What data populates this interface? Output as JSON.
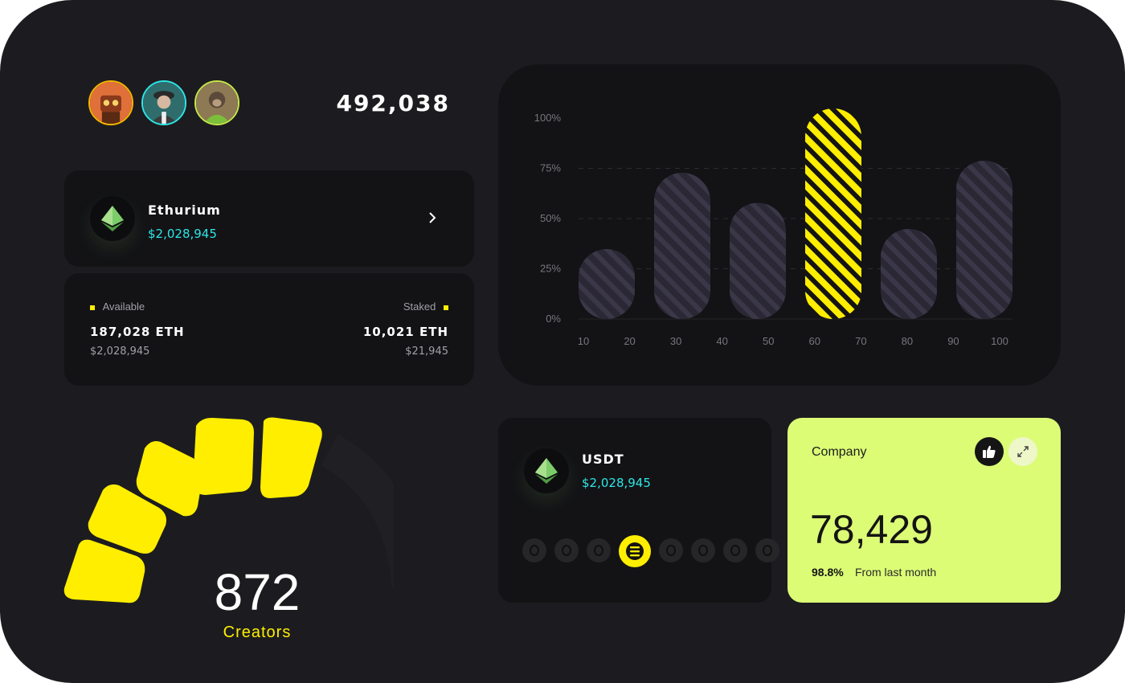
{
  "header": {
    "total": "492,038"
  },
  "avatars": [
    {
      "name": "avatar-robot-icon",
      "ring": "#f5b400"
    },
    {
      "name": "avatar-gentleman-icon",
      "ring": "#2ee6e6"
    },
    {
      "name": "avatar-monkey-icon",
      "ring": "#c6e64a"
    }
  ],
  "eth_card": {
    "name": "Ethurium",
    "price": "$2,028,945",
    "icon": "ethereum-icon"
  },
  "balances": {
    "available": {
      "label": "Available",
      "amount": "187,028 ETH",
      "usd": "$2,028,945"
    },
    "staked": {
      "label": "Staked",
      "amount": "10,021 ETH",
      "usd": "$21,945"
    }
  },
  "chart_data": {
    "type": "bar",
    "y_ticks": [
      "100%",
      "75%",
      "50%",
      "25%",
      "0%"
    ],
    "x_ticks": [
      "10",
      "20",
      "30",
      "40",
      "50",
      "60",
      "70",
      "80",
      "90",
      "100"
    ],
    "values": [
      30,
      68,
      53,
      100,
      40,
      74
    ],
    "highlight_index": 3,
    "ylim": [
      0,
      100
    ],
    "grid": "dashed horizontal",
    "colors": {
      "bar": "#2b2835",
      "stripe": "#3b3748",
      "highlight": "#ffee00",
      "highlight_stripe": "#141414"
    }
  },
  "creators": {
    "count": "872",
    "label": "Creators"
  },
  "usdt_card": {
    "name": "USDT",
    "price": "$2,028,945",
    "icon": "ethereum-icon"
  },
  "tokens": {
    "count": 8,
    "active_index": 3
  },
  "company": {
    "label": "Company",
    "value": "78,429",
    "pct": "98.8%",
    "sub": "From last month"
  },
  "colors": {
    "accent": "#ffee00",
    "cyan": "#2ee6e6",
    "lime": "#dcfc76",
    "bg": "#1c1c20",
    "panel": "#131316"
  }
}
